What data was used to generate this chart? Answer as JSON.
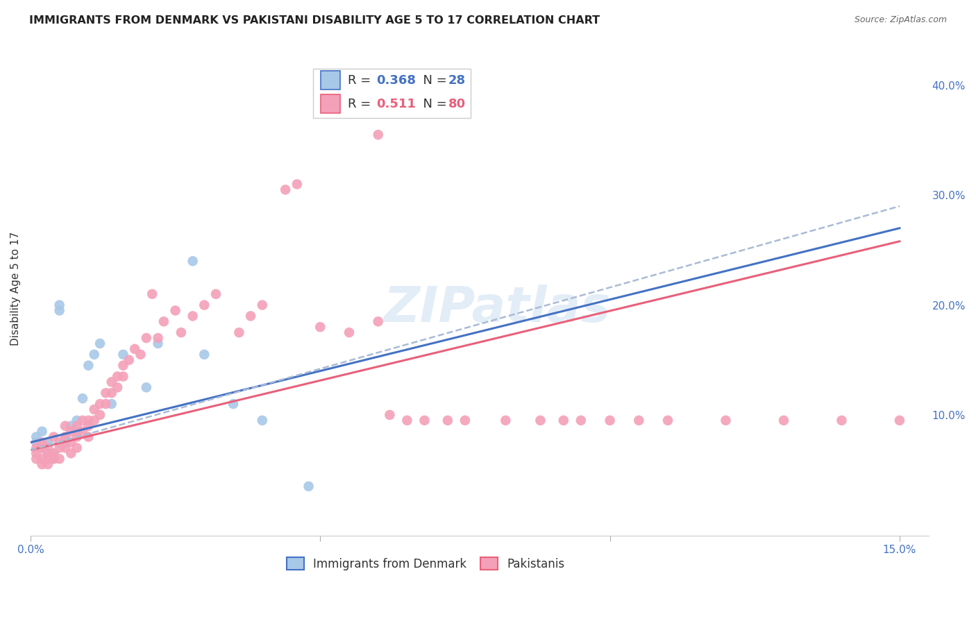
{
  "title": "IMMIGRANTS FROM DENMARK VS PAKISTANI DISABILITY AGE 5 TO 17 CORRELATION CHART",
  "source": "Source: ZipAtlas.com",
  "ylabel": "Disability Age 5 to 17",
  "xlim": [
    0.0,
    0.155
  ],
  "ylim": [
    -0.01,
    0.44
  ],
  "xticks": [
    0.0,
    0.05,
    0.1,
    0.15
  ],
  "xtick_labels": [
    "0.0%",
    "",
    "",
    "15.0%"
  ],
  "yticks_right": [
    0.1,
    0.2,
    0.3,
    0.4
  ],
  "ytick_labels_right": [
    "10.0%",
    "20.0%",
    "30.0%",
    "40.0%"
  ],
  "denmark_color": "#a8c8e8",
  "pakistan_color": "#f4a0b8",
  "trendline_denmark_color": "#4472c4",
  "trendline_pakistan_color": "#e8607a",
  "trendline_dashed_color": "#aabbd4",
  "background_color": "#ffffff",
  "grid_color": "#d8d8e0",
  "denmark_x": [
    0.001,
    0.001,
    0.002,
    0.002,
    0.003,
    0.003,
    0.004,
    0.004,
    0.005,
    0.005,
    0.006,
    0.006,
    0.007,
    0.008,
    0.008,
    0.009,
    0.01,
    0.011,
    0.012,
    0.014,
    0.016,
    0.02,
    0.022,
    0.028,
    0.03,
    0.035,
    0.04,
    0.048
  ],
  "denmark_y": [
    0.075,
    0.08,
    0.07,
    0.085,
    0.065,
    0.075,
    0.06,
    0.065,
    0.195,
    0.2,
    0.08,
    0.075,
    0.09,
    0.085,
    0.095,
    0.115,
    0.145,
    0.155,
    0.165,
    0.11,
    0.155,
    0.125,
    0.165,
    0.24,
    0.155,
    0.11,
    0.095,
    0.035
  ],
  "pakistan_x": [
    0.001,
    0.001,
    0.001,
    0.002,
    0.002,
    0.002,
    0.002,
    0.003,
    0.003,
    0.003,
    0.003,
    0.004,
    0.004,
    0.004,
    0.005,
    0.005,
    0.005,
    0.006,
    0.006,
    0.006,
    0.007,
    0.007,
    0.007,
    0.008,
    0.008,
    0.008,
    0.009,
    0.009,
    0.01,
    0.01,
    0.01,
    0.011,
    0.011,
    0.012,
    0.012,
    0.013,
    0.013,
    0.014,
    0.014,
    0.015,
    0.015,
    0.016,
    0.016,
    0.017,
    0.018,
    0.019,
    0.02,
    0.021,
    0.022,
    0.023,
    0.025,
    0.026,
    0.028,
    0.03,
    0.032,
    0.036,
    0.038,
    0.04,
    0.044,
    0.046,
    0.05,
    0.055,
    0.06,
    0.062,
    0.065,
    0.068,
    0.072,
    0.075,
    0.082,
    0.088,
    0.092,
    0.095,
    0.1,
    0.105,
    0.11,
    0.12,
    0.13,
    0.14,
    0.15,
    0.06
  ],
  "pakistan_y": [
    0.07,
    0.065,
    0.06,
    0.075,
    0.07,
    0.06,
    0.055,
    0.07,
    0.065,
    0.06,
    0.055,
    0.08,
    0.065,
    0.06,
    0.075,
    0.07,
    0.06,
    0.09,
    0.08,
    0.07,
    0.085,
    0.075,
    0.065,
    0.09,
    0.08,
    0.07,
    0.095,
    0.085,
    0.095,
    0.09,
    0.08,
    0.105,
    0.095,
    0.11,
    0.1,
    0.12,
    0.11,
    0.13,
    0.12,
    0.135,
    0.125,
    0.145,
    0.135,
    0.15,
    0.16,
    0.155,
    0.17,
    0.21,
    0.17,
    0.185,
    0.195,
    0.175,
    0.19,
    0.2,
    0.21,
    0.175,
    0.19,
    0.2,
    0.305,
    0.31,
    0.18,
    0.175,
    0.185,
    0.1,
    0.095,
    0.095,
    0.095,
    0.095,
    0.095,
    0.095,
    0.095,
    0.095,
    0.095,
    0.095,
    0.095,
    0.095,
    0.095,
    0.095,
    0.095,
    0.355
  ],
  "denmark_trendline_x": [
    0.0,
    0.15
  ],
  "denmark_trendline_y": [
    0.075,
    0.27
  ],
  "pakistan_trendline_x": [
    0.0,
    0.15
  ],
  "pakistan_trendline_y": [
    0.068,
    0.258
  ],
  "dashed_trendline_x": [
    0.0,
    0.15
  ],
  "dashed_trendline_y": [
    0.068,
    0.29
  ],
  "watermark_text": "ZIPatlas",
  "watermark_fontsize": 52,
  "watermark_color": "#c8ddf0",
  "watermark_alpha": 0.5,
  "title_fontsize": 11.5,
  "source_fontsize": 9,
  "ylabel_fontsize": 11,
  "tick_fontsize": 11,
  "legend_fontsize": 13,
  "denmark_r": "0.368",
  "denmark_n": "28",
  "pakistan_r": "0.511",
  "pakistan_n": "80",
  "r_label_color": "#333333",
  "n_value_color_denmark": "#4472c4",
  "n_value_color_pakistan": "#e8607a",
  "legend_box_color": "#cccccc",
  "legend_box_facecolor": "#ffffff"
}
